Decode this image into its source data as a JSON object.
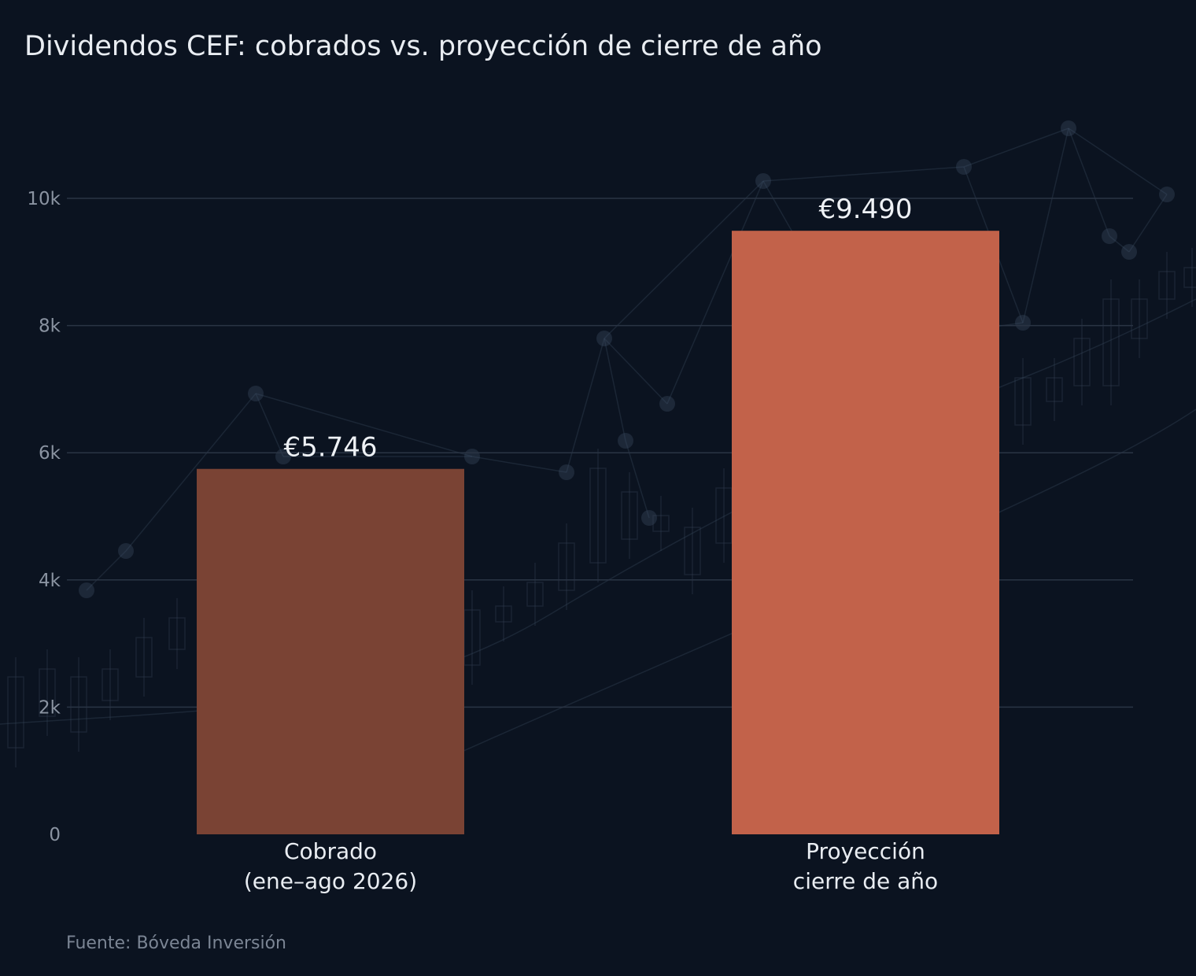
{
  "chart_data": {
    "type": "bar",
    "title": "Dividendos CEF: cobrados vs. proyección de cierre de año",
    "categories": [
      [
        "Cobrado",
        "(ene–ago 2026)"
      ],
      [
        "Proyección",
        "cierre de año"
      ]
    ],
    "values": [
      5746,
      9490
    ],
    "value_labels": [
      "€5.746",
      "€9.490"
    ],
    "bar_colors": [
      "#7a4334",
      "#c2624a"
    ],
    "ylim": [
      0,
      10000
    ],
    "yticks": [
      0,
      2000,
      4000,
      6000,
      8000,
      10000
    ],
    "ytick_labels": [
      "0",
      "2k",
      "4k",
      "6k",
      "8k",
      "10k"
    ],
    "xlabel": "",
    "ylabel": "",
    "grid": true,
    "source": "Fuente: Bóveda Inversión"
  }
}
